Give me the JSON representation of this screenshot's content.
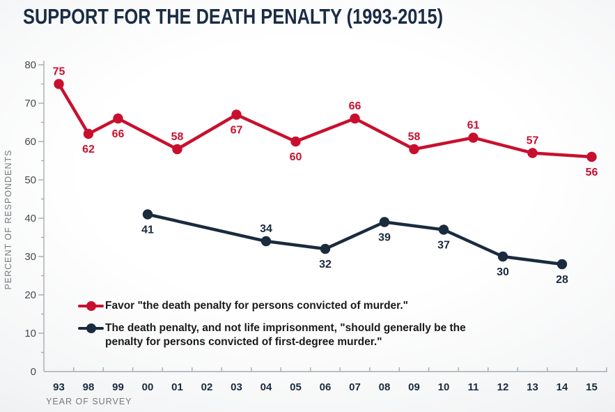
{
  "title": "SUPPORT FOR THE DEATH PENALTY (1993-2015)",
  "colors": {
    "favor_red": "#C8102E",
    "alt_navy": "#1A2B3E",
    "title_navy": "#1B2C44",
    "axis_gray": "#A7ABAF",
    "y_tick_label_gray": "#45494D",
    "x_tick_label_navy": "#1B2A3E",
    "axis_title_gray": "#75797D",
    "legend_text": "#1A1A1A",
    "background_edge": "#D7D9DB",
    "background_center": "#FFFFFF"
  },
  "chart_data": {
    "type": "line",
    "title": "SUPPORT FOR THE DEATH PENALTY (1993-2015)",
    "xlabel": "YEAR OF SURVEY",
    "ylabel": "PERCENT OF RESPONDENTS",
    "ylim": [
      0,
      80
    ],
    "y_ticks": [
      0,
      10,
      20,
      30,
      40,
      50,
      60,
      70,
      80
    ],
    "y_minor_tick_step": 5,
    "grid": false,
    "legend_position": "inside-bottom-left",
    "categories": [
      "93",
      "98",
      "99",
      "00",
      "01",
      "02",
      "03",
      "04",
      "05",
      "06",
      "07",
      "08",
      "09",
      "10",
      "11",
      "12",
      "13",
      "14",
      "15"
    ],
    "series": [
      {
        "name": "Favor \"the death penalty for persons convicted of murder.\"",
        "color": "#C8102E",
        "points": [
          {
            "year": "93",
            "value": 75,
            "label_pos": "above"
          },
          {
            "year": "98",
            "value": 62,
            "label_pos": "below"
          },
          {
            "year": "99",
            "value": 66,
            "label_pos": "below"
          },
          {
            "year": "01",
            "value": 58,
            "label_pos": "above"
          },
          {
            "year": "03",
            "value": 67,
            "label_pos": "below"
          },
          {
            "year": "05",
            "value": 60,
            "label_pos": "below"
          },
          {
            "year": "07",
            "value": 66,
            "label_pos": "above"
          },
          {
            "year": "09",
            "value": 58,
            "label_pos": "above"
          },
          {
            "year": "11",
            "value": 61,
            "label_pos": "above"
          },
          {
            "year": "13",
            "value": 57,
            "label_pos": "above"
          },
          {
            "year": "15",
            "value": 56,
            "label_pos": "below"
          }
        ]
      },
      {
        "name": "The death penalty, and not life imprisonment, \"should generally be the penalty for persons convicted of first-degree murder.\"",
        "color": "#1A2B3E",
        "points": [
          {
            "year": "00",
            "value": 41,
            "label_pos": "below"
          },
          {
            "year": "04",
            "value": 34,
            "label_pos": "above"
          },
          {
            "year": "06",
            "value": 32,
            "label_pos": "below"
          },
          {
            "year": "08",
            "value": 39,
            "label_pos": "below"
          },
          {
            "year": "10",
            "value": 37,
            "label_pos": "below"
          },
          {
            "year": "12",
            "value": 30,
            "label_pos": "below"
          },
          {
            "year": "14",
            "value": 28,
            "label_pos": "below"
          }
        ]
      }
    ]
  },
  "legend": {
    "items": [
      {
        "label": "Favor \"the death penalty for persons convicted of murder.\""
      },
      {
        "label": "The death penalty, and not life imprisonment, \"should generally be the penalty for persons convicted of first-degree murder.\""
      }
    ]
  }
}
